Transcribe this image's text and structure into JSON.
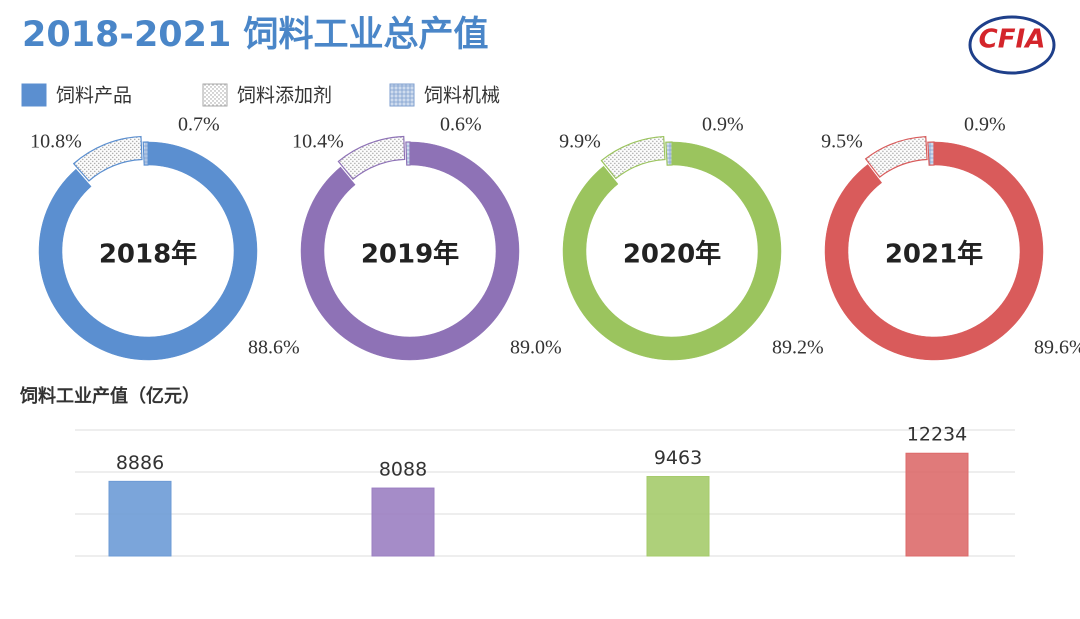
{
  "title": "2018-2021 饲料工业总产值",
  "logo": "CFIA",
  "legend": [
    "饲料产品",
    "饲料添加剂",
    "饲料机械"
  ],
  "chart_data": [
    {
      "type": "donut",
      "center_label": "2018年",
      "color": "#5b8fd0",
      "values": [
        88.6,
        10.8,
        0.7
      ],
      "value_labels": [
        "88.6%",
        "10.8%",
        "0.7%"
      ]
    },
    {
      "type": "donut",
      "center_label": "2019年",
      "color": "#8e72b6",
      "values": [
        89.0,
        10.4,
        0.6
      ],
      "value_labels": [
        "89.0%",
        "10.4%",
        "0.6%"
      ]
    },
    {
      "type": "donut",
      "center_label": "2020年",
      "color": "#9bc45e",
      "values": [
        89.2,
        9.9,
        0.9
      ],
      "value_labels": [
        "89.2%",
        "9.9%",
        "0.9%"
      ]
    },
    {
      "type": "donut",
      "center_label": "2021年",
      "color": "#d95b5b",
      "values": [
        89.6,
        9.5,
        0.9
      ],
      "value_labels": [
        "89.6%",
        "9.5%",
        "0.9%"
      ]
    },
    {
      "type": "bar",
      "title": "饲料工业产值（亿元）",
      "values": [
        8886,
        8088,
        9463,
        12234
      ],
      "colors": [
        "#6d9bd6",
        "#9b7fc2",
        "#a5cb6b",
        "#dd6b6b"
      ],
      "ylim": [
        0,
        15000
      ],
      "yticks": [
        0,
        5000,
        10000,
        15000
      ],
      "grid": true
    }
  ]
}
